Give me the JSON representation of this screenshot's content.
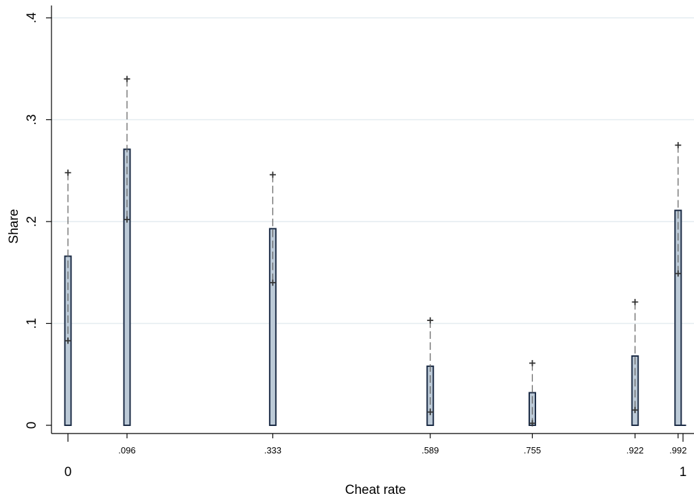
{
  "chart_data": {
    "type": "bar",
    "xlabel": "Cheat rate",
    "ylabel": "Share",
    "xlim": [
      0,
      1
    ],
    "ylim": [
      0,
      0.4
    ],
    "grid": true,
    "x_major_ticks": [
      {
        "value": 0,
        "label": "0"
      },
      {
        "value": 1,
        "label": "1"
      }
    ],
    "x_minor_ticks": [
      {
        "value": 0.096,
        "label": ".096"
      },
      {
        "value": 0.333,
        "label": ".333"
      },
      {
        "value": 0.589,
        "label": ".589"
      },
      {
        "value": 0.755,
        "label": ".755"
      },
      {
        "value": 0.922,
        "label": ".922"
      },
      {
        "value": 0.992,
        "label": ".992"
      }
    ],
    "y_ticks": [
      {
        "value": 0,
        "label": "0"
      },
      {
        "value": 0.1,
        "label": ".1"
      },
      {
        "value": 0.2,
        "label": ".2"
      },
      {
        "value": 0.3,
        "label": ".3"
      },
      {
        "value": 0.4,
        "label": ".4"
      }
    ],
    "x": [
      0,
      0.096,
      0.333,
      0.589,
      0.755,
      0.922,
      0.992,
      1
    ],
    "values": [
      0.166,
      0.271,
      0.193,
      0.058,
      0.032,
      0.068,
      0.211,
      0.0
    ],
    "ci_low": [
      0.083,
      0.202,
      0.14,
      0.013,
      0.002,
      0.015,
      0.149,
      null
    ],
    "ci_high": [
      0.248,
      0.34,
      0.246,
      0.103,
      0.061,
      0.121,
      0.275,
      null
    ],
    "colors": {
      "bar_fill": "#bccad7",
      "bar_stroke": "#1a2a44",
      "grid": "#e4ecf0",
      "ci": "#666666",
      "marker": "#333333",
      "axis": "#000000"
    }
  }
}
